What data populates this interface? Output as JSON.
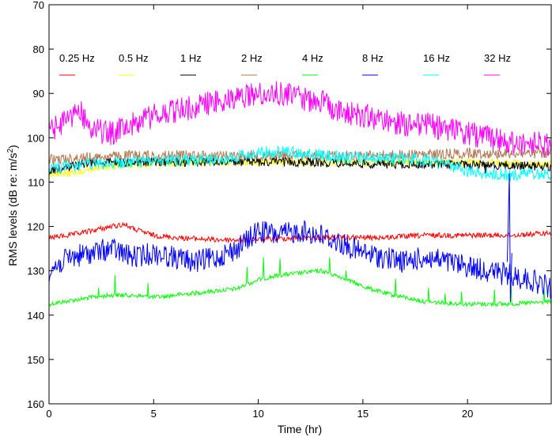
{
  "chart_data": {
    "type": "line",
    "title": "",
    "xlabel": "Time (hr)",
    "ylabel_main": "RMS levels (dB re: m/s",
    "ylabel_sup": "2",
    "ylabel_close": ")",
    "xlim": [
      0,
      24
    ],
    "ylim": [
      70,
      160
    ],
    "y_reversed": true,
    "grid": false,
    "legend_position": "top",
    "x_ticks": [
      0,
      5,
      10,
      15,
      20
    ],
    "y_ticks": [
      70,
      80,
      90,
      100,
      110,
      120,
      130,
      140,
      150,
      160
    ],
    "series": [
      {
        "name": "0.25 Hz",
        "color": "#ff0000",
        "noise": 0.6,
        "spike_every": 0,
        "x": [
          0,
          1,
          2,
          3,
          3.6,
          4,
          5,
          6,
          8,
          10,
          12,
          14,
          16,
          18,
          20,
          22,
          24
        ],
        "y": [
          122.5,
          122,
          121,
          120,
          119.5,
          120.5,
          122,
          122.5,
          123,
          123,
          122.5,
          122.5,
          122.5,
          122,
          122,
          122,
          121.5
        ]
      },
      {
        "name": "0.5 Hz",
        "color": "#ffff00",
        "noise": 0.8,
        "spike_every": 0,
        "x": [
          0,
          1,
          2,
          4,
          8,
          12,
          16,
          20,
          24
        ],
        "y": [
          108.5,
          108,
          107,
          106,
          105.5,
          105.5,
          105.5,
          105.5,
          106
        ]
      },
      {
        "name": "1 Hz",
        "color": "#000000",
        "noise": 1.0,
        "spike_every": 0,
        "x": [
          0,
          1,
          2,
          4,
          8,
          12,
          16,
          20,
          24
        ],
        "y": [
          107.5,
          106.5,
          105.5,
          105.5,
          105.5,
          105.5,
          106,
          106,
          106.5
        ]
      },
      {
        "name": "2 Hz",
        "color": "#b07850",
        "noise": 1.2,
        "spike_every": 0,
        "x": [
          0,
          2,
          4,
          8,
          12,
          16,
          20,
          24
        ],
        "y": [
          105,
          104.5,
          104,
          104,
          104,
          104,
          103.5,
          103.5
        ]
      },
      {
        "name": "4 Hz",
        "color": "#00ff00",
        "noise": 0.5,
        "spike_every": 23,
        "x": [
          0,
          2,
          3,
          4,
          5,
          6,
          7,
          8,
          9,
          10,
          11,
          12,
          13,
          14,
          15,
          16,
          17,
          18,
          20,
          22,
          24
        ],
        "y": [
          137.5,
          136,
          135.5,
          135.5,
          136,
          135.5,
          135,
          134.5,
          134,
          132,
          131,
          130.5,
          130,
          131.5,
          133.5,
          135,
          136,
          137,
          137.5,
          137.5,
          137
        ]
      },
      {
        "name": "8 Hz",
        "color": "#0000ff",
        "noise": 2.6,
        "spike_every": 0,
        "x": [
          0,
          1,
          2,
          3,
          4,
          5,
          6,
          7,
          8,
          9,
          10,
          11,
          12,
          13,
          14,
          15,
          16,
          17,
          18,
          19,
          20,
          21,
          22,
          23,
          24
        ],
        "y": [
          130,
          127,
          126,
          125,
          127,
          126,
          127,
          128,
          127,
          125,
          121,
          122,
          121,
          122,
          124,
          126,
          127,
          128,
          127,
          128,
          129,
          130,
          131,
          132,
          134
        ]
      },
      {
        "name": "16 Hz",
        "color": "#00ffff",
        "noise": 1.4,
        "spike_every": 0,
        "x": [
          0,
          1,
          2,
          4,
          6,
          8,
          10,
          11,
          12,
          13,
          14,
          16,
          18,
          19,
          20,
          21,
          22,
          23,
          24
        ],
        "y": [
          107,
          106.5,
          106,
          105.5,
          105,
          105,
          103.5,
          103,
          103.5,
          104,
          104.5,
          104.5,
          105,
          106,
          107.5,
          108,
          108.5,
          108,
          108.5
        ]
      },
      {
        "name": "32 Hz",
        "color": "#ff00ff",
        "noise": 2.8,
        "spike_every": 0,
        "x": [
          0,
          0.5,
          1,
          1.5,
          2,
          3,
          4,
          5,
          6,
          7,
          8,
          9,
          10,
          11,
          12,
          13,
          14,
          15,
          16,
          17,
          18,
          19,
          20,
          21,
          22,
          23,
          24
        ],
        "y": [
          99,
          97,
          95,
          94,
          98,
          99,
          97,
          95,
          94,
          93,
          92,
          91,
          90,
          90,
          91,
          92,
          94,
          95,
          96,
          97,
          97,
          98,
          99,
          100,
          101,
          101,
          102
        ]
      }
    ]
  }
}
